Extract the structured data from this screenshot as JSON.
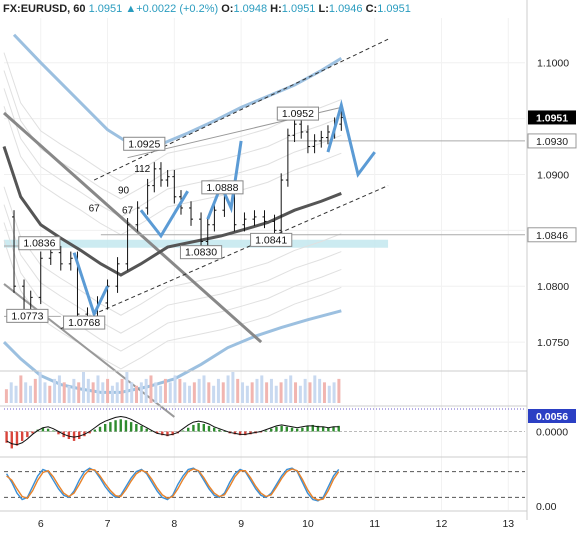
{
  "header": {
    "symbol": "FX:EURUSD, 60",
    "last": "1.0951",
    "change_icon": "triangle-up-icon",
    "change": "+0.0022 (+0.2%)",
    "o_label": "O:",
    "o": "1.0948",
    "h_label": "H:",
    "h": "1.0951",
    "l_label": "L:",
    "l": "1.0946",
    "c_label": "C:",
    "c": "1.0951"
  },
  "colors": {
    "price_tag": "#000000",
    "level_tag": "#222222",
    "macd_tag": "#2b3fc4",
    "projection": "#5b9bd5",
    "histogram_up": "#2e8b2e",
    "histogram_down": "#d9453b",
    "support_band": "#bfe6ee",
    "stoch_k": "#3a8fd6",
    "stoch_d": "#e8822a"
  },
  "chart_data": [
    {
      "type": "candlestick",
      "panel": "price",
      "ylim": [
        1.0725,
        1.104
      ],
      "xlim": [
        5.45,
        13.25
      ],
      "x_ticks": [
        6,
        7,
        8,
        9,
        10,
        11,
        12,
        13
      ],
      "y_ticks": [
        "1.1000",
        "1.0950",
        "1.0900",
        "1.0850",
        "1.0800",
        "1.0750"
      ],
      "y_tick_values": [
        1.1,
        1.095,
        1.09,
        1.085,
        1.08,
        1.075
      ],
      "current_price": {
        "label": "1.0951",
        "value": 1.0951
      },
      "level_tags": [
        {
          "label": "1.0930",
          "value": 1.093
        },
        {
          "label": "1.0846",
          "value": 1.0846
        }
      ],
      "price_labels": [
        {
          "text": "1.0836",
          "x": 5.98,
          "y": 1.0838
        },
        {
          "text": "1.0773",
          "x": 5.8,
          "y": 1.0773
        },
        {
          "text": "1.0768",
          "x": 6.65,
          "y": 1.0767
        },
        {
          "text": "1.0925",
          "x": 7.55,
          "y": 1.0927
        },
        {
          "text": "1.0888",
          "x": 8.72,
          "y": 1.0888
        },
        {
          "text": "1.0830",
          "x": 8.4,
          "y": 1.083
        },
        {
          "text": "1.0841",
          "x": 9.45,
          "y": 1.0841
        },
        {
          "text": "1.0952",
          "x": 9.85,
          "y": 1.0954
        }
      ],
      "annotations": [
        {
          "text": "67",
          "x": 6.8,
          "y": 1.0867
        },
        {
          "text": "67",
          "x": 7.3,
          "y": 1.0865
        },
        {
          "text": "90",
          "x": 7.24,
          "y": 1.0883
        },
        {
          "text": "112",
          "x": 7.52,
          "y": 1.0902
        }
      ],
      "x": [
        5.45,
        5.6,
        5.75,
        5.85,
        6.0,
        6.15,
        6.3,
        6.45,
        6.55,
        6.7,
        6.85,
        7.0,
        7.15,
        7.3,
        7.45,
        7.6,
        7.7,
        7.8,
        7.9,
        8.0,
        8.1,
        8.25,
        8.4,
        8.5,
        8.6,
        8.75,
        8.9,
        9.05,
        9.2,
        9.35,
        9.5,
        9.6,
        9.7,
        9.8,
        9.9,
        10.0,
        10.1,
        10.2,
        10.3,
        10.4,
        10.5
      ],
      "close": [
        1.0862,
        1.08,
        1.0775,
        1.079,
        1.0825,
        1.083,
        1.082,
        1.0825,
        1.0775,
        1.077,
        1.0785,
        1.08,
        1.082,
        1.0855,
        1.087,
        1.089,
        1.0905,
        1.0895,
        1.0898,
        1.088,
        1.087,
        1.086,
        1.084,
        1.0855,
        1.0868,
        1.088,
        1.0855,
        1.086,
        1.0862,
        1.0858,
        1.085,
        1.0895,
        1.0935,
        1.0945,
        1.0938,
        1.0925,
        1.093,
        1.0933,
        1.0938,
        1.0945,
        1.0951
      ],
      "overlays": {
        "moving_average_dark": {
          "x": [
            5.45,
            5.7,
            6.0,
            6.3,
            6.6,
            6.9,
            7.2,
            7.5,
            7.9,
            8.3,
            8.7,
            9.0,
            9.4,
            9.8,
            10.2,
            10.5
          ],
          "y": [
            1.0925,
            1.088,
            1.0855,
            1.0843,
            1.0832,
            1.082,
            1.081,
            1.082,
            1.0835,
            1.084,
            1.0845,
            1.085,
            1.0857,
            1.0868,
            1.0876,
            1.0883
          ]
        },
        "upper_band": {
          "x": [
            5.6,
            6.0,
            6.5,
            7.0,
            7.4,
            7.8,
            8.2,
            8.6,
            9.0,
            9.4,
            9.8,
            10.2,
            10.5
          ],
          "y": [
            1.1025,
            1.1,
            1.097,
            1.094,
            1.0925,
            1.0927,
            1.0937,
            1.0948,
            1.096,
            1.097,
            1.098,
            1.0993,
            1.1004
          ]
        },
        "lower_band": {
          "x": [
            5.45,
            5.7,
            6.0,
            6.3,
            6.6,
            6.9,
            7.2,
            7.6,
            8.0,
            8.4,
            8.8,
            9.2,
            9.6,
            10.0,
            10.5
          ],
          "y": [
            1.075,
            1.0735,
            1.072,
            1.0712,
            1.0708,
            1.0705,
            1.0705,
            1.071,
            1.0717,
            1.073,
            1.0745,
            1.0755,
            1.0763,
            1.077,
            1.0778
          ]
        },
        "channel_upper": {
          "x": [
            6.8,
            11.2
          ],
          "y": [
            1.0895,
            1.1021
          ]
        },
        "channel_lower": {
          "x": [
            6.3,
            11.2
          ],
          "y": [
            1.0762,
            1.089
          ]
        },
        "resistance_line": {
          "x": [
            7.3,
            10.5
          ],
          "y": [
            1.0915,
            1.096
          ]
        },
        "down_trend_thick": {
          "x": [
            5.45,
            9.3
          ],
          "y": [
            1.0955,
            1.075
          ]
        },
        "down_trend_thin": {
          "x": [
            5.45,
            8.0
          ],
          "y": [
            1.0802,
            1.0683
          ]
        },
        "horizontal_levels": [
          {
            "value": 1.093,
            "from": 9.7
          },
          {
            "value": 1.0846,
            "from": 6.9
          },
          {
            "value": 1.0836,
            "from": 5.45,
            "to": 6.3
          },
          {
            "value": 1.0773,
            "from": 5.45,
            "to": 6.3
          }
        ],
        "support_band": {
          "value": 1.0838,
          "from": 5.45,
          "to": 11.2
        }
      },
      "projection_paths": [
        {
          "x": [
            6.5,
            6.8,
            7.0
          ],
          "y": [
            1.083,
            1.0775,
            1.08
          ]
        },
        {
          "x": [
            7.5,
            7.8,
            8.0,
            8.2
          ],
          "y": [
            1.0868,
            1.0845,
            1.0865,
            1.0885
          ]
        },
        {
          "x": [
            8.5,
            8.7,
            8.85,
            9.0
          ],
          "y": [
            1.086,
            1.089,
            1.087,
            1.093
          ]
        },
        {
          "x": [
            10.3,
            10.5,
            10.75,
            11.0
          ],
          "y": [
            1.092,
            1.0962,
            1.09,
            1.092
          ]
        }
      ]
    },
    {
      "type": "bar",
      "panel": "volume",
      "values": [
        4,
        6,
        5,
        8,
        6,
        5,
        7,
        9,
        6,
        5,
        7,
        8,
        6,
        5,
        7,
        6,
        9,
        7,
        6,
        8,
        6,
        7,
        5,
        6,
        7,
        9,
        6,
        5,
        6,
        7,
        8,
        6,
        5,
        7,
        6,
        8,
        7,
        6,
        5,
        6,
        7,
        8,
        6,
        5,
        7,
        6,
        8,
        9,
        7,
        6,
        5,
        6,
        7,
        8,
        6,
        7,
        5,
        6,
        7,
        8,
        6,
        5,
        7,
        6,
        8,
        7,
        6,
        5,
        6,
        7
      ]
    },
    {
      "type": "bar",
      "panel": "macd",
      "current_label": "0.0056",
      "current": 0.0056,
      "zero_label": "0.0000",
      "ylim": [
        -0.0025,
        0.0025
      ],
      "histogram": [
        -0.0012,
        -0.0018,
        -0.0015,
        -0.001,
        -0.0006,
        -0.0002,
        0.0002,
        0.0004,
        0.0003,
        0.0001,
        -0.0003,
        -0.0006,
        -0.0008,
        -0.001,
        -0.0008,
        -0.0005,
        -0.0002,
        0.0002,
        0.0005,
        0.0008,
        0.001,
        0.0012,
        0.0013,
        0.0012,
        0.001,
        0.0008,
        0.0006,
        0.0003,
        0.0001,
        -0.0002,
        -0.0004,
        -0.0005,
        -0.0004,
        -0.0002,
        0.0001,
        0.0004,
        0.0007,
        0.0009,
        0.0008,
        0.0006,
        0.0004,
        0.0002,
        0.0,
        -0.0002,
        -0.0003,
        -0.0004,
        -0.0004,
        -0.0003,
        -0.0002,
        -0.0001,
        0.0001,
        0.0003,
        0.0005,
        0.0006,
        0.0005,
        0.0004,
        0.0003,
        0.0004,
        0.0006,
        0.0007,
        0.0006,
        0.0005,
        0.0004,
        0.0005,
        0.0006
      ],
      "signal": [
        -0.001,
        -0.0013,
        -0.0014,
        -0.0012,
        -0.0008,
        -0.0003,
        0.0001,
        0.0004,
        0.0005,
        0.0003,
        0.0,
        -0.0003,
        -0.0005,
        -0.0006,
        -0.0005,
        -0.0003,
        0.0,
        0.0004,
        0.0008,
        0.0011,
        0.0013,
        0.0015,
        0.0016,
        0.0015,
        0.0013,
        0.001,
        0.0007,
        0.0004,
        0.0001,
        -0.0002,
        -0.0003,
        -0.0004,
        -0.0003,
        -0.0001,
        0.0003,
        0.0007,
        0.001,
        0.0011,
        0.001,
        0.0008,
        0.0005,
        0.0003,
        0.0001,
        -0.0001,
        -0.0002,
        -0.0003,
        -0.0003,
        -0.0002,
        -0.0001,
        0.0,
        0.0002,
        0.0004,
        0.0006,
        0.0007,
        0.0006,
        0.0005,
        0.0004,
        0.0005,
        0.0006,
        0.0006,
        0.0005,
        0.0005,
        0.0004,
        0.0005,
        0.0005
      ]
    },
    {
      "type": "line",
      "panel": "stochastic",
      "ylim": [
        0,
        100
      ],
      "y_tick_label": "0.00",
      "levels": [
        80,
        20
      ],
      "series": [
        {
          "values": [
            75,
            55,
            30,
            15,
            20,
            45,
            70,
            85,
            80,
            60,
            40,
            25,
            20,
            35,
            60,
            80,
            88,
            82,
            65,
            45,
            30,
            20,
            25,
            45,
            65,
            80,
            85,
            75,
            55,
            35,
            20,
            15,
            25,
            50,
            70,
            85,
            88,
            80,
            60,
            40,
            25,
            20,
            30,
            55,
            75,
            85,
            80,
            60,
            40,
            25,
            20,
            30,
            50,
            70,
            85,
            88,
            80,
            55,
            30,
            15,
            12,
            20,
            45,
            70,
            85
          ]
        },
        {
          "values": [
            70,
            60,
            40,
            22,
            18,
            35,
            60,
            78,
            82,
            68,
            48,
            30,
            22,
            30,
            50,
            72,
            85,
            84,
            70,
            52,
            36,
            24,
            22,
            38,
            58,
            75,
            83,
            78,
            62,
            42,
            26,
            18,
            22,
            40,
            62,
            80,
            86,
            82,
            66,
            46,
            30,
            22,
            26,
            46,
            68,
            82,
            82,
            66,
            46,
            30,
            22,
            26,
            44,
            64,
            80,
            86,
            82,
            62,
            38,
            20,
            14,
            16,
            36,
            62,
            80
          ]
        }
      ]
    }
  ]
}
